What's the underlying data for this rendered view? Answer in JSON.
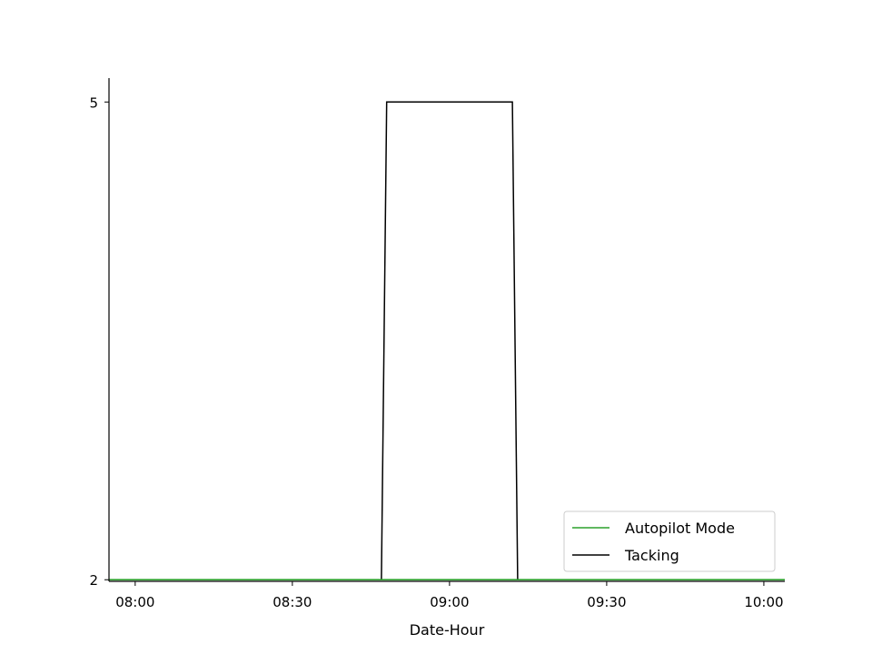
{
  "chart_data": {
    "type": "line",
    "xlabel": "Date-Hour",
    "ylabel": "",
    "x_ticks": [
      "08:00",
      "08:30",
      "09:00",
      "09:30",
      "10:00"
    ],
    "y_ticks": [
      "2",
      "5"
    ],
    "xlim": [
      "07:55",
      "10:04"
    ],
    "ylim": [
      1.99,
      5.15
    ],
    "grid": false,
    "legend_position": "lower-right",
    "series": [
      {
        "name": "Autopilot Mode",
        "color": "#2ca02c",
        "points": [
          [
            "07:55",
            2
          ],
          [
            "10:04",
            2
          ]
        ]
      },
      {
        "name": "Tacking",
        "color": "#000000",
        "points": [
          [
            "07:55",
            2
          ],
          [
            "08:47",
            2
          ],
          [
            "08:48",
            5
          ],
          [
            "09:12",
            5
          ],
          [
            "09:13",
            2
          ],
          [
            "10:04",
            2
          ]
        ]
      }
    ]
  }
}
